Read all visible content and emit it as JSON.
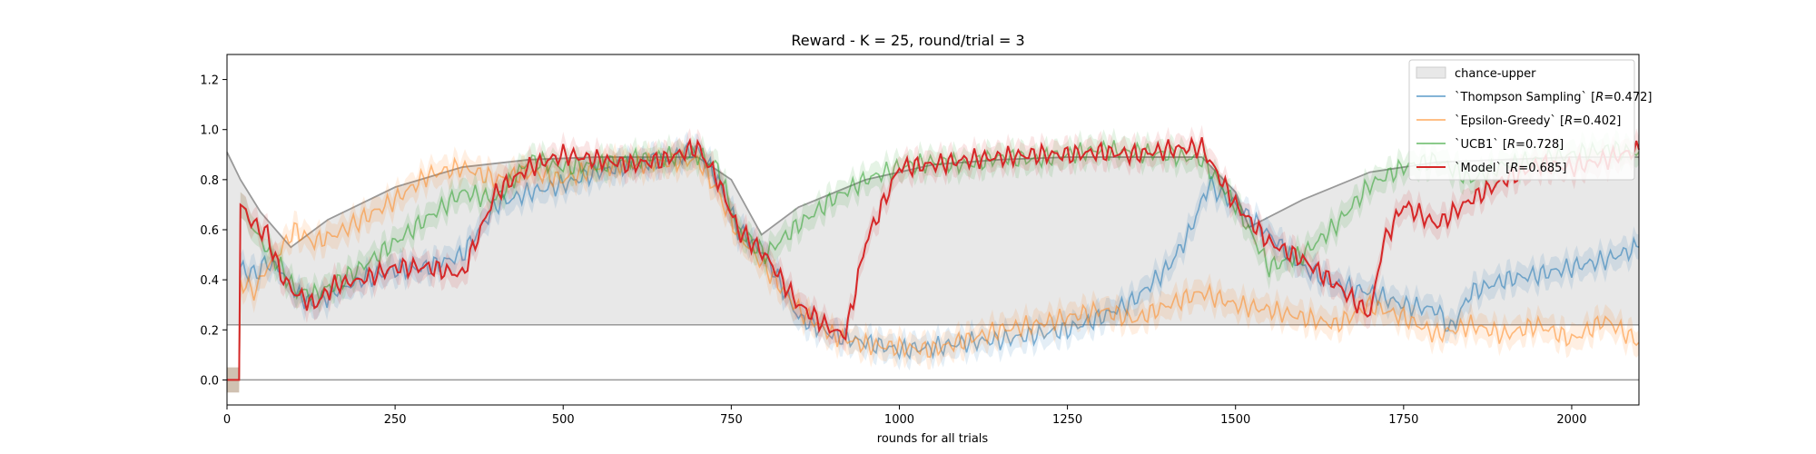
{
  "chart_data": {
    "type": "line",
    "title": "Reward - K = 25, round/trial = 3",
    "xlabel": "rounds for all trials",
    "ylabel": "",
    "xlim": [
      0,
      2100
    ],
    "ylim": [
      -0.1,
      1.3
    ],
    "xticks": [
      0,
      250,
      500,
      750,
      1000,
      1250,
      1500,
      1750,
      2000
    ],
    "yticks": [
      0.0,
      0.2,
      0.4,
      0.6,
      0.8,
      1.0,
      1.2
    ],
    "grid": false,
    "legend_position": "top-right",
    "reference_lines": [
      {
        "name": "chance-lower",
        "y": 0.22
      },
      {
        "name": "zero",
        "y": 0.0
      }
    ],
    "band": {
      "name": "chance-upper",
      "color": "#e8e8e8",
      "edge_color": "#999999",
      "lower": 0.22,
      "upper": {
        "x": [
          0,
          20,
          50,
          95,
          150,
          250,
          350,
          450,
          550,
          650,
          700,
          750,
          795,
          850,
          950,
          1050,
          1150,
          1250,
          1350,
          1450,
          1500,
          1520,
          1600,
          1700,
          1800,
          1900,
          2000,
          2100
        ],
        "y": [
          0.91,
          0.8,
          0.67,
          0.53,
          0.64,
          0.77,
          0.85,
          0.88,
          0.89,
          0.89,
          0.89,
          0.8,
          0.58,
          0.69,
          0.8,
          0.86,
          0.88,
          0.89,
          0.89,
          0.89,
          0.75,
          0.61,
          0.72,
          0.83,
          0.87,
          0.88,
          0.89,
          0.89
        ]
      }
    },
    "series": [
      {
        "name": "`Thompson Sampling` [R=0.472]",
        "label_plain": "`Thompson Sampling` [",
        "label_italic": "R",
        "label_rest": "=0.472]",
        "color": "#1f77b4",
        "alpha": 0.55,
        "x": [
          0,
          18,
          20,
          40,
          60,
          80,
          100,
          130,
          160,
          200,
          250,
          300,
          350,
          400,
          450,
          500,
          550,
          600,
          650,
          700,
          730,
          760,
          800,
          850,
          900,
          950,
          1000,
          1050,
          1100,
          1150,
          1200,
          1250,
          1300,
          1350,
          1400,
          1430,
          1460,
          1500,
          1550,
          1600,
          1650,
          1700,
          1750,
          1800,
          1820,
          1850,
          1900,
          1950,
          2000,
          2050,
          2100
        ],
        "y": [
          0.0,
          0.0,
          0.45,
          0.42,
          0.47,
          0.44,
          0.35,
          0.3,
          0.35,
          0.4,
          0.44,
          0.45,
          0.5,
          0.7,
          0.75,
          0.78,
          0.83,
          0.86,
          0.88,
          0.92,
          0.8,
          0.6,
          0.5,
          0.25,
          0.18,
          0.15,
          0.12,
          0.13,
          0.15,
          0.16,
          0.18,
          0.2,
          0.25,
          0.32,
          0.45,
          0.58,
          0.78,
          0.7,
          0.58,
          0.45,
          0.38,
          0.35,
          0.3,
          0.28,
          0.2,
          0.35,
          0.4,
          0.42,
          0.45,
          0.48,
          0.53
        ]
      },
      {
        "name": "`Epsilon-Greedy` [R=0.402]",
        "label_plain": "`Epsilon-Greedy` [",
        "label_italic": "R",
        "label_rest": "=0.402]",
        "color": "#ff7f0e",
        "alpha": 0.5,
        "x": [
          0,
          18,
          20,
          40,
          60,
          80,
          100,
          130,
          160,
          200,
          250,
          300,
          350,
          400,
          450,
          500,
          550,
          600,
          650,
          700,
          730,
          760,
          800,
          850,
          900,
          950,
          1000,
          1050,
          1100,
          1150,
          1200,
          1250,
          1300,
          1350,
          1400,
          1450,
          1500,
          1550,
          1600,
          1650,
          1700,
          1750,
          1800,
          1850,
          1900,
          1950,
          2000,
          2050,
          2100
        ],
        "y": [
          0.0,
          0.0,
          0.4,
          0.35,
          0.45,
          0.52,
          0.6,
          0.55,
          0.58,
          0.64,
          0.72,
          0.82,
          0.85,
          0.8,
          0.83,
          0.8,
          0.85,
          0.86,
          0.87,
          0.88,
          0.75,
          0.58,
          0.45,
          0.28,
          0.18,
          0.14,
          0.13,
          0.12,
          0.16,
          0.2,
          0.22,
          0.25,
          0.28,
          0.24,
          0.3,
          0.35,
          0.3,
          0.28,
          0.25,
          0.22,
          0.3,
          0.25,
          0.18,
          0.22,
          0.18,
          0.22,
          0.16,
          0.24,
          0.15
        ]
      },
      {
        "name": "`UCB1` [R=0.728]",
        "label_plain": "`UCB1` [",
        "label_italic": "R",
        "label_rest": "=0.728]",
        "color": "#2ca02c",
        "alpha": 0.55,
        "x": [
          0,
          18,
          20,
          40,
          60,
          80,
          100,
          130,
          160,
          200,
          250,
          300,
          350,
          400,
          450,
          500,
          550,
          600,
          650,
          700,
          730,
          760,
          800,
          850,
          900,
          950,
          1000,
          1050,
          1100,
          1150,
          1200,
          1250,
          1300,
          1350,
          1400,
          1450,
          1500,
          1550,
          1600,
          1650,
          1700,
          1750,
          1800,
          1850,
          1900,
          1950,
          2000,
          2050,
          2100
        ],
        "y": [
          0.0,
          0.0,
          0.7,
          0.6,
          0.52,
          0.45,
          0.36,
          0.34,
          0.38,
          0.45,
          0.55,
          0.65,
          0.75,
          0.72,
          0.88,
          0.85,
          0.86,
          0.88,
          0.89,
          0.9,
          0.85,
          0.6,
          0.5,
          0.62,
          0.72,
          0.8,
          0.85,
          0.87,
          0.86,
          0.89,
          0.88,
          0.9,
          0.92,
          0.91,
          0.9,
          0.88,
          0.7,
          0.45,
          0.5,
          0.62,
          0.78,
          0.85,
          0.88,
          0.8,
          0.86,
          0.88,
          0.9,
          0.92,
          0.91
        ]
      },
      {
        "name": "`Model` [R=0.685]",
        "label_plain": "`Model` [",
        "label_italic": "R",
        "label_rest": "=0.685]",
        "color": "#d62728",
        "alpha": 1.0,
        "x": [
          0,
          18,
          20,
          40,
          60,
          80,
          100,
          130,
          160,
          200,
          250,
          300,
          350,
          400,
          450,
          500,
          550,
          600,
          650,
          700,
          730,
          760,
          800,
          850,
          900,
          920,
          950,
          1000,
          1050,
          1100,
          1150,
          1200,
          1250,
          1300,
          1350,
          1400,
          1450,
          1500,
          1550,
          1600,
          1650,
          1700,
          1720,
          1750,
          1800,
          1850,
          1900,
          1950,
          2000,
          2050,
          2100
        ],
        "y": [
          0.0,
          0.0,
          0.7,
          0.62,
          0.58,
          0.42,
          0.35,
          0.3,
          0.38,
          0.4,
          0.45,
          0.45,
          0.42,
          0.75,
          0.85,
          0.9,
          0.88,
          0.86,
          0.88,
          0.93,
          0.8,
          0.6,
          0.5,
          0.3,
          0.2,
          0.18,
          0.55,
          0.85,
          0.86,
          0.88,
          0.89,
          0.9,
          0.9,
          0.91,
          0.9,
          0.92,
          0.93,
          0.7,
          0.55,
          0.48,
          0.38,
          0.26,
          0.55,
          0.7,
          0.62,
          0.72,
          0.8,
          0.86,
          0.85,
          0.88,
          0.92
        ]
      }
    ]
  }
}
